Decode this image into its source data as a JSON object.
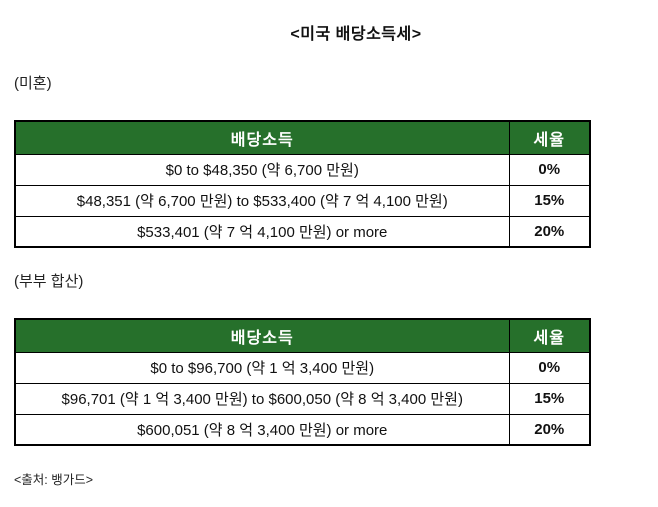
{
  "page": {
    "title": "<미국 배당소득세>",
    "source": "<출처: 뱅가드>"
  },
  "colors": {
    "header_bg": "#26702b",
    "header_text": "#ffffff",
    "border": "#000000"
  },
  "tables": [
    {
      "section_label": "(미혼)",
      "columns": {
        "income": "배당소득",
        "rate": "세율"
      },
      "rows": [
        {
          "income": "$0 to $48,350 (약 6,700 만원)",
          "rate": "0%"
        },
        {
          "income": "$48,351 (약 6,700 만원) to $533,400 (약 7 억 4,100 만원)",
          "rate": "15%"
        },
        {
          "income": "$533,401 (약 7 억 4,100 만원) or more",
          "rate": "20%"
        }
      ]
    },
    {
      "section_label": "(부부 합산)",
      "columns": {
        "income": "배당소득",
        "rate": "세율"
      },
      "rows": [
        {
          "income": "$0 to $96,700 (약 1 억 3,400 만원)",
          "rate": "0%"
        },
        {
          "income": "$96,701 (약 1 억 3,400 만원) to $600,050 (약 8 억 3,400 만원)",
          "rate": "15%"
        },
        {
          "income": "$600,051 (약 8 억 3,400 만원) or more",
          "rate": "20%"
        }
      ]
    }
  ]
}
